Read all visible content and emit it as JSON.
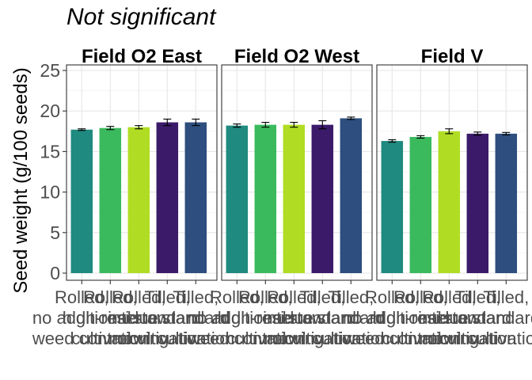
{
  "chart_data": {
    "type": "bar",
    "title": "Not significant",
    "ylabel": "Seed weight (g/100 seeds)",
    "xlabel": "",
    "ylim": [
      0,
      25
    ],
    "yticks": [
      "0",
      "5",
      "10",
      "15",
      "20",
      "25"
    ],
    "grid": true,
    "legend": "none",
    "categories": [
      [
        "Rolled,",
        "no additional",
        "weed control"
      ],
      [
        "Rolled,",
        "high-residue",
        "cultivation"
      ],
      [
        "Rolled,",
        "interrow",
        "mowing"
      ],
      [
        "Tilled,",
        "standard",
        "cultivation"
      ],
      [
        "Tilled,",
        "standard",
        "cultivation"
      ]
    ],
    "colors": [
      "#1f8a7f",
      "#3aba5d",
      "#b0dd23",
      "#3b1b69",
      "#2d4e7e"
    ],
    "panels": [
      {
        "name": "Field O2 East",
        "values": [
          17.7,
          17.9,
          18.0,
          18.6,
          18.6
        ],
        "errors": [
          0.1,
          0.2,
          0.2,
          0.4,
          0.4
        ]
      },
      {
        "name": "Field O2 West",
        "values": [
          18.2,
          18.3,
          18.3,
          18.3,
          19.1
        ],
        "errors": [
          0.2,
          0.3,
          0.3,
          0.5,
          0.15
        ]
      },
      {
        "name": "Field V",
        "values": [
          16.3,
          16.8,
          17.5,
          17.2,
          17.2
        ],
        "errors": [
          0.15,
          0.15,
          0.3,
          0.2,
          0.15
        ]
      }
    ]
  }
}
